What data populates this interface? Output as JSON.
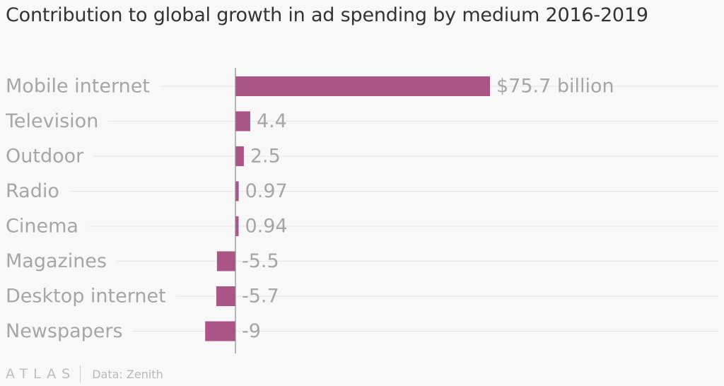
{
  "chart_data": {
    "type": "bar",
    "orientation": "horizontal",
    "title": "Contribution to global growth in ad spending by medium 2016-2019",
    "categories": [
      "Mobile internet",
      "Television",
      "Outdoor",
      "Radio",
      "Cinema",
      "Magazines",
      "Desktop internet",
      "Newspapers"
    ],
    "values": [
      75.7,
      4.4,
      2.5,
      0.97,
      0.94,
      -5.5,
      -5.7,
      -9
    ],
    "value_labels": [
      "$75.7 billion",
      "4.4",
      "2.5",
      "0.97",
      "0.94",
      "-5.5",
      "-5.7",
      "-9"
    ],
    "xlim": [
      -9,
      75.7
    ],
    "grid": true,
    "colors": {
      "bar": "#ab5586",
      "grid": "#e6e6e6",
      "zero_line": "#8a8a8a",
      "label": "#a6a6a6"
    }
  },
  "footer": {
    "brand": "ATLAS",
    "source": "Data: Zenith"
  }
}
